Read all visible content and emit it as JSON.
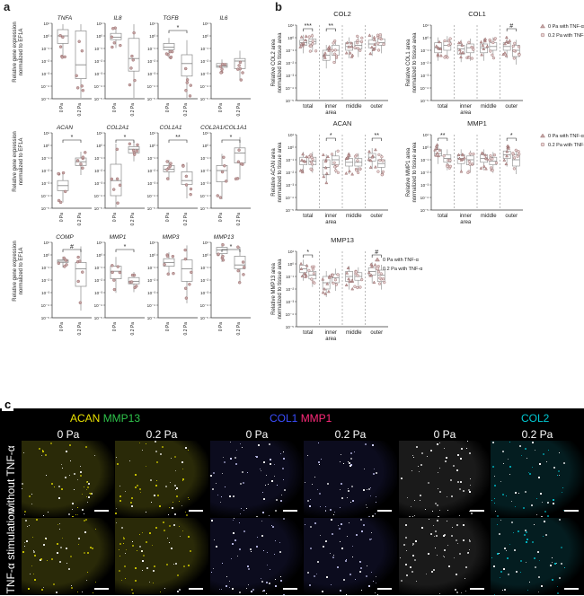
{
  "panel_labels": {
    "a": "a",
    "b": "b",
    "c": "c"
  },
  "colors": {
    "box": "#8a8a8a",
    "point_fill": "#c6a6a6",
    "point_stroke": "#8b5a5a",
    "sig": "#222222",
    "acan": "#e8e000",
    "mmp13": "#2ec24a",
    "col1": "#3a4dff",
    "mmp1": "#ff2a7a",
    "col2": "#00c8d2"
  },
  "panel_a": {
    "ylabels": {
      "row1": [
        "Relative gene expression",
        "normalized to EF1A"
      ],
      "row2": [
        "Relative gene expression",
        "normalized to EF1A"
      ],
      "row3": [
        "Relative gene expression",
        "normalized to EF1A"
      ]
    },
    "xticks": [
      "0 Pa",
      "0.2 Pa"
    ],
    "ytick_labels_row1": [
      "10¹",
      "10⁰",
      "10⁻¹",
      "10⁻²",
      "10⁻³",
      "10⁻⁴",
      "10⁻⁵"
    ],
    "genes": [
      {
        "name": "TNFA",
        "sig": "",
        "g0": [
          0.5,
          1.0,
          1.6
        ],
        "g1": [
          0.6,
          3.3,
          4.4
        ]
      },
      {
        "name": "IL8",
        "sig": "",
        "g0": [
          0.8,
          1.1,
          1.3
        ],
        "g1": [
          1.2,
          2.8,
          3.8
        ]
      },
      {
        "name": "TGFB",
        "sig": "*",
        "g0": [
          1.6,
          1.9,
          2.1
        ],
        "g1": [
          2.5,
          3.2,
          4.2
        ]
      },
      {
        "name": "IL6",
        "sig": "",
        "g0": [
          3.2,
          3.4,
          3.5
        ],
        "g1": [
          2.8,
          3.0,
          3.6
        ]
      },
      {
        "name": "ACAN",
        "sig": "*",
        "g0": [
          3.8,
          4.2,
          4.6
        ],
        "g1": [
          2.0,
          2.3,
          2.6
        ]
      },
      {
        "name": "COL2A1",
        "sig": "*",
        "g0": [
          2.5,
          3.8,
          5.0
        ],
        "g1": [
          1.1,
          1.3,
          1.6
        ]
      },
      {
        "name": "COL1A1",
        "sig": "**",
        "g0": [
          2.6,
          2.9,
          3.1
        ],
        "g1": [
          3.1,
          3.8,
          4.1
        ]
      },
      {
        "name": "COL2A1/COL1A1",
        "sig": "*",
        "g0": [
          2.6,
          3.0,
          3.9
        ],
        "g1": [
          1.2,
          1.6,
          2.4
        ]
      },
      {
        "name": "COMP",
        "sig": "#",
        "g0": [
          1.4,
          1.5,
          1.6
        ],
        "g1": [
          1.6,
          2.1,
          3.5
        ]
      },
      {
        "name": "MMP1",
        "sig": "*",
        "g0": [
          1.9,
          2.3,
          2.9
        ],
        "g1": [
          2.8,
          3.1,
          3.3
        ]
      },
      {
        "name": "MMP3",
        "sig": "",
        "g0": [
          1.3,
          1.6,
          1.9
        ],
        "g1": [
          1.4,
          2.1,
          3.1
        ]
      },
      {
        "name": "MMP13",
        "sig": "*",
        "g0": [
          0.4,
          0.6,
          0.9
        ],
        "g1": [
          1.1,
          1.8,
          2.1
        ]
      }
    ]
  },
  "panel_b": {
    "x_categories": [
      "total",
      "inner\narea",
      "middle",
      "outer"
    ],
    "ytick_labels": [
      "10¹",
      "10⁰",
      "10⁻¹",
      "10⁻²",
      "10⁻³",
      "10⁻⁴",
      "10⁻⁵"
    ],
    "legend": [
      "0 Pa with TNF-α",
      "0.2 Pa with TNF-α"
    ],
    "charts": [
      {
        "title": "COL2",
        "ylabel": [
          "Relative COL2 area",
          "normalized to tissue area"
        ],
        "sig": [
          "***",
          "**",
          "",
          ""
        ],
        "g0": [
          [
            1.2,
            1.4,
            1.6
          ],
          [
            2.0,
            2.4,
            2.8
          ],
          [
            1.4,
            1.7,
            2.0
          ],
          [
            1.2,
            1.5,
            1.8
          ]
        ],
        "g1": [
          [
            1.1,
            1.3,
            1.5
          ],
          [
            1.6,
            2.0,
            2.4
          ],
          [
            1.3,
            1.6,
            1.9
          ],
          [
            1.1,
            1.4,
            1.6
          ]
        ]
      },
      {
        "title": "COL1",
        "ylabel": [
          "Relative COL1 area",
          "normalized to tissue area"
        ],
        "sig": [
          "",
          "",
          "",
          "#"
        ],
        "g0": [
          [
            1.4,
            1.8,
            2.2
          ],
          [
            1.6,
            1.9,
            2.3
          ],
          [
            1.5,
            1.8,
            2.2
          ],
          [
            1.4,
            1.7,
            2.0
          ]
        ],
        "g1": [
          [
            1.3,
            1.6,
            2.0
          ],
          [
            1.5,
            1.8,
            2.2
          ],
          [
            1.4,
            1.7,
            2.0
          ],
          [
            1.6,
            2.0,
            2.5
          ]
        ]
      },
      {
        "title": "ACAN",
        "ylabel": [
          "Relative ACAN area",
          "normalized to tissue area"
        ],
        "sig": [
          "",
          "*",
          "",
          "**"
        ],
        "g0": [
          [
            1.8,
            2.1,
            2.4
          ],
          [
            2.0,
            2.6,
            3.2
          ],
          [
            1.9,
            2.2,
            2.5
          ],
          [
            1.5,
            1.8,
            2.1
          ]
        ],
        "g1": [
          [
            1.8,
            2.1,
            2.4
          ],
          [
            1.7,
            2.0,
            2.4
          ],
          [
            1.9,
            2.2,
            2.5
          ],
          [
            2.0,
            2.3,
            2.6
          ]
        ]
      },
      {
        "title": "MMP1",
        "ylabel": [
          "Relative MMP1 area",
          "normalized to tissue area"
        ],
        "sig": [
          "**",
          "",
          "",
          "*"
        ],
        "g0": [
          [
            1.2,
            1.5,
            1.7
          ],
          [
            1.6,
            1.9,
            2.3
          ],
          [
            1.6,
            1.9,
            2.2
          ],
          [
            1.3,
            1.6,
            1.9
          ]
        ],
        "g1": [
          [
            1.6,
            1.9,
            2.2
          ],
          [
            1.7,
            2.0,
            2.4
          ],
          [
            1.8,
            2.1,
            2.4
          ],
          [
            1.6,
            2.0,
            2.5
          ]
        ]
      },
      {
        "title": "MMP13",
        "ylabel": [
          "Relative MMP13 area",
          "normalized to tissue area"
        ],
        "sig": [
          "*",
          "",
          "",
          "#"
        ],
        "g0": [
          [
            1.1,
            1.4,
            1.7
          ],
          [
            2.0,
            2.5,
            3.0
          ],
          [
            1.6,
            2.0,
            2.4
          ],
          [
            1.3,
            1.6,
            1.9
          ]
        ],
        "g1": [
          [
            1.6,
            1.9,
            2.2
          ],
          [
            1.8,
            2.1,
            2.5
          ],
          [
            1.7,
            2.0,
            2.3
          ],
          [
            1.5,
            1.9,
            2.4
          ]
        ]
      }
    ]
  },
  "panel_c": {
    "groups": [
      {
        "title": [
          "ACAN ",
          "MMP13"
        ],
        "conds": [
          "0 Pa",
          "0.2 Pa"
        ]
      },
      {
        "title": [
          "COL1 ",
          "MMP1"
        ],
        "conds": [
          "0 Pa",
          "0.2 Pa"
        ]
      },
      {
        "title": [
          "COL2"
        ],
        "conds": [
          "0 Pa",
          "0.2 Pa"
        ]
      }
    ],
    "rows": [
      "without TNF-α",
      "TNF-α stimulation"
    ]
  }
}
